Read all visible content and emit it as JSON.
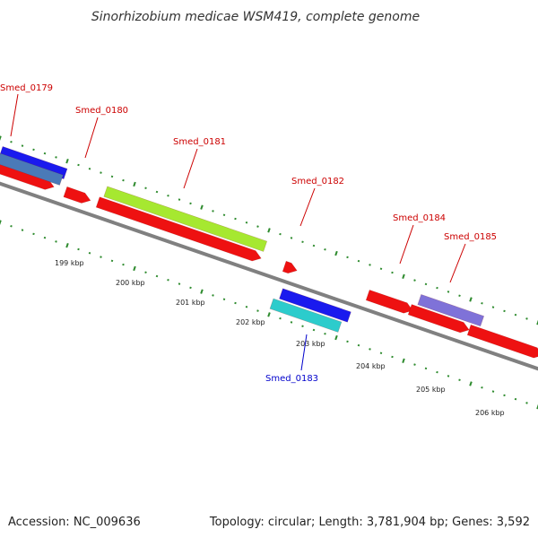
{
  "title": "Sinorhizobium medicae WSM419, complete genome",
  "footer": {
    "accession": "Accession: NC_009636",
    "topology": "Topology: circular; Length: 3,781,904 bp; Genes: 3,592"
  },
  "colors": {
    "backbone": "#808080",
    "tick": "#2e8b2e",
    "gene_red": "#ee1111",
    "gene_blue": "#1a1aee",
    "gene_steelblue": "#4a7ab8",
    "gene_lime": "#a6e830",
    "gene_cyan": "#2ccccc",
    "gene_purple": "#7f72d8",
    "label_red": "#cc0000",
    "label_blue": "#0000cc"
  },
  "kbp_labels": [
    "199 kbp",
    "200 kbp",
    "201 kbp",
    "202 kbp",
    "203 kbp",
    "204 kbp",
    "205 kbp",
    "206 kbp"
  ],
  "gene_labels": [
    {
      "name": "Smed_0179",
      "color": "label_red"
    },
    {
      "name": "Smed_0180",
      "color": "label_red"
    },
    {
      "name": "Smed_0181",
      "color": "label_red"
    },
    {
      "name": "Smed_0182",
      "color": "label_red"
    },
    {
      "name": "Smed_0183",
      "color": "label_blue"
    },
    {
      "name": "Smed_0184",
      "color": "label_red"
    },
    {
      "name": "Smed_0185",
      "color": "label_red"
    }
  ]
}
